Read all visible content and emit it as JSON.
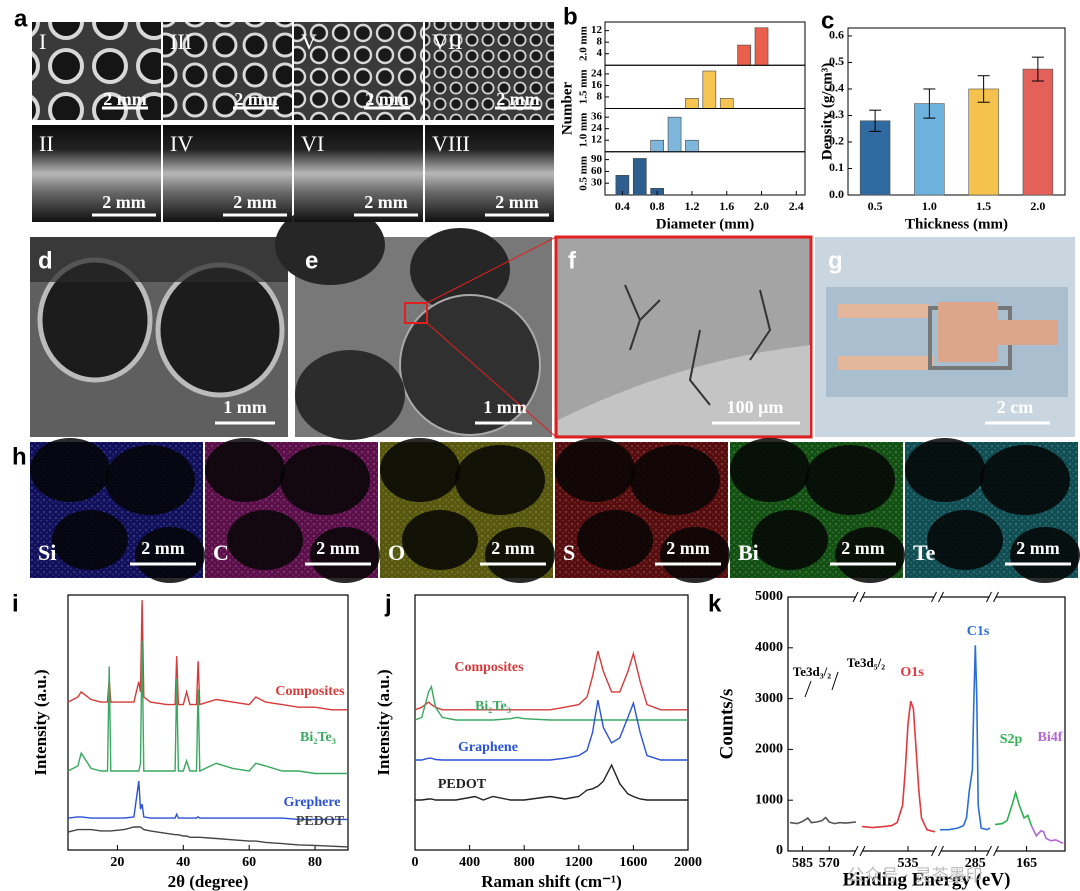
{
  "panel_labels": [
    "a",
    "b",
    "c",
    "d",
    "e",
    "f",
    "g",
    "h",
    "i",
    "j",
    "k"
  ],
  "photos": {
    "a": [
      {
        "label": "I",
        "scale": "2 mm"
      },
      {
        "label": "III",
        "scale": "2 mm"
      },
      {
        "label": "V",
        "scale": "2 mm"
      },
      {
        "label": "VII",
        "scale": "2 mm"
      },
      {
        "label": "II",
        "scale": "2 mm"
      },
      {
        "label": "IV",
        "scale": "2 mm"
      },
      {
        "label": "VI",
        "scale": "2 mm"
      },
      {
        "label": "VIII",
        "scale": "2 mm"
      }
    ],
    "d": {
      "scale": "1 mm"
    },
    "e": {
      "scale": "1 mm"
    },
    "f": {
      "scale": "100 μm"
    },
    "g": {
      "scale": "2 cm"
    }
  },
  "maps": [
    {
      "element": "Si",
      "scale": "2 mm",
      "color": "#2626ff"
    },
    {
      "element": "C",
      "scale": "2 mm",
      "color": "#ff22cc"
    },
    {
      "element": "O",
      "scale": "2 mm",
      "color": "#f2f21c"
    },
    {
      "element": "S",
      "scale": "2 mm",
      "color": "#f01c1c"
    },
    {
      "element": "Bi",
      "scale": "2 mm",
      "color": "#2ee02e"
    },
    {
      "element": "Te",
      "scale": "2 mm",
      "color": "#22d6e6"
    }
  ],
  "watermark": "公众号 · 灵茶墨印",
  "chart_data": [
    {
      "panel": "b",
      "type": "bar",
      "xlabel": "Diameter (mm)",
      "ylabel": "Number",
      "xlim": [
        0.2,
        2.5
      ],
      "xticks": [
        0.4,
        0.8,
        1.2,
        1.6,
        {
          "value": 2,
          "label": "2.0"
        },
        2.4
      ],
      "subplots": [
        {
          "name": "2.0 mm",
          "color": "#e8604c",
          "x": [
            1.8,
            2.0
          ],
          "values": [
            7,
            13
          ],
          "ylim": [
            0,
            15
          ],
          "yticks": [
            4,
            8,
            12
          ]
        },
        {
          "name": "1.5 mm",
          "color": "#f5c451",
          "x": [
            1.2,
            1.4,
            1.6
          ],
          "values": [
            7,
            26,
            7
          ],
          "ylim": [
            0,
            30
          ],
          "yticks": [
            8,
            16,
            24
          ]
        },
        {
          "name": "1.0 mm",
          "color": "#7fb6dc",
          "x": [
            0.8,
            1.0,
            1.2
          ],
          "values": [
            12,
            36,
            12
          ],
          "ylim": [
            0,
            45
          ],
          "yticks": [
            12,
            24,
            36
          ]
        },
        {
          "name": "0.5 mm",
          "color": "#2e5e8e",
          "x": [
            0.4,
            0.6,
            0.8
          ],
          "values": [
            50,
            93,
            17
          ],
          "ylim": [
            0,
            110
          ],
          "yticks": [
            30,
            60,
            90
          ]
        }
      ]
    },
    {
      "panel": "c",
      "type": "bar",
      "xlabel": "Thickness (mm)",
      "ylabel": "Density (g/cm³)",
      "categories": [
        "0.5",
        "1.0",
        "1.5",
        "2.0"
      ],
      "values": [
        0.28,
        0.345,
        0.4,
        0.475
      ],
      "errors": [
        0.04,
        0.055,
        0.05,
        0.045
      ],
      "colors": [
        "#2f6aa0",
        "#6cb2dd",
        "#f5c24d",
        "#e4615a"
      ],
      "ylim": [
        0,
        0.63
      ],
      "yticks": [
        {
          "value": 0,
          "label": "0.0"
        },
        0.1,
        0.2,
        0.3,
        0.4,
        0.5,
        0.6
      ]
    },
    {
      "panel": "i",
      "type": "line",
      "xlabel": "2θ (degree)",
      "ylabel": "Intensity (a.u.)",
      "xlim": [
        5,
        90
      ],
      "xticks": [
        20,
        40,
        60,
        80
      ],
      "ylim": [
        0,
        100
      ],
      "x": [
        5,
        8,
        9,
        12,
        15,
        17,
        17.5,
        18,
        22,
        25,
        26.5,
        27,
        27.5,
        28,
        30,
        35,
        37.5,
        38,
        38.5,
        40,
        41,
        42,
        44,
        44.5,
        45,
        50,
        55,
        60,
        62,
        65,
        70,
        75,
        80,
        85,
        90
      ],
      "series": [
        {
          "name": "Composites",
          "color": "#d63a3a",
          "values": [
            58,
            60,
            62,
            59,
            58,
            58,
            67,
            58,
            58,
            58,
            66,
            62,
            98,
            60,
            58,
            57,
            57,
            76,
            57,
            57,
            62,
            57,
            57,
            74,
            57,
            59,
            58,
            57,
            60,
            58,
            57,
            56,
            56,
            55,
            55
          ]
        },
        {
          "name": "Bi₂Te₃",
          "color": "#3aa860",
          "values": [
            31,
            33,
            38,
            32,
            31,
            31,
            72,
            31,
            31,
            31,
            31,
            34,
            82,
            31,
            31,
            31,
            31,
            67,
            31,
            31,
            35,
            31,
            31,
            63,
            31,
            34,
            32,
            31,
            34,
            33,
            31,
            31,
            30,
            30,
            30
          ]
        },
        {
          "name": "Grephere",
          "color": "#2a52d4",
          "values": [
            12.5,
            13,
            13,
            12.5,
            12.5,
            12.5,
            12.5,
            12.5,
            12.5,
            13,
            27,
            16,
            18,
            13,
            12.5,
            12.5,
            12.5,
            14,
            12.5,
            12.5,
            12.5,
            12.5,
            12.5,
            13,
            12.5,
            12.5,
            12.5,
            12.5,
            12.5,
            12.5,
            12.5,
            12,
            12,
            12,
            12
          ]
        },
        {
          "name": "PEDOT",
          "color": "#444444",
          "values": [
            7,
            8,
            8,
            8,
            7.5,
            7.5,
            7.5,
            7.5,
            8,
            9,
            9,
            9,
            8.5,
            8,
            7.5,
            6.5,
            6,
            6,
            6,
            5.5,
            5.5,
            5,
            5,
            5,
            5,
            4.5,
            4,
            3.5,
            3.5,
            3,
            2.5,
            2,
            1.8,
            1.5,
            1.2
          ]
        }
      ]
    },
    {
      "panel": "j",
      "type": "line",
      "xlabel": "Raman shift (cm⁻¹)",
      "ylabel": "Intensity (a.u.)",
      "xlim": [
        0,
        2000
      ],
      "xticks": [
        0,
        400,
        800,
        1200,
        1600,
        2000
      ],
      "ylim": [
        0,
        100
      ],
      "x": [
        0,
        50,
        100,
        120,
        150,
        200,
        300,
        440,
        500,
        570,
        700,
        750,
        800,
        990,
        1100,
        1200,
        1260,
        1300,
        1340,
        1380,
        1440,
        1500,
        1560,
        1600,
        1650,
        1700,
        1800,
        2000
      ],
      "series": [
        {
          "name": "Composites",
          "color": "#d63a3a",
          "values": [
            55,
            56,
            58,
            57,
            56,
            55,
            55,
            55,
            55,
            55,
            55,
            55,
            55,
            55,
            56,
            57,
            60,
            68,
            78,
            70,
            62,
            62,
            70,
            77,
            66,
            57,
            55,
            55
          ]
        },
        {
          "name": "Bi₂Te₃",
          "color": "#3aa860",
          "values": [
            51,
            52,
            62,
            64,
            56,
            52,
            51,
            51,
            51,
            51,
            51.5,
            52,
            51.5,
            51,
            51,
            51,
            51,
            51,
            51,
            51,
            51,
            51,
            51,
            51,
            51,
            51,
            51,
            51
          ]
        },
        {
          "name": "Graphene",
          "color": "#2a52d4",
          "values": [
            35.3,
            35.3,
            36,
            36,
            35.5,
            35.3,
            35.3,
            35.3,
            35.3,
            35.3,
            35.3,
            35.3,
            35.3,
            35.3,
            36,
            37,
            39,
            46,
            58.8,
            48,
            42,
            44,
            52,
            57.6,
            46,
            37,
            35.3,
            35.3
          ]
        },
        {
          "name": "PEDOT",
          "color": "#222222",
          "values": [
            19.6,
            19.6,
            20,
            20,
            19.6,
            19.6,
            19.6,
            21,
            19.6,
            21,
            19.6,
            19.6,
            19.6,
            21,
            20,
            21,
            23.5,
            24,
            25,
            27,
            33.3,
            26,
            22,
            21,
            20,
            19.6,
            19.6,
            19.6
          ]
        }
      ]
    },
    {
      "panel": "k",
      "type": "line",
      "xlabel": "Binding Energy (eV)",
      "ylabel": "Counts/s",
      "ylim": [
        0,
        5000
      ],
      "yticks": [
        0,
        1000,
        2000,
        3000,
        4000,
        5000
      ],
      "segments": [
        {
          "xlim": [
            592,
            555
          ],
          "xticks": [
            585,
            570
          ],
          "annotations": [
            "Te3d₃/₂",
            "Te3d₅/₂"
          ],
          "series": [
            {
              "color": "#555555",
              "x": [
                592,
                588,
                585,
                582,
                580,
                577,
                574,
                572,
                570,
                567,
                564,
                561,
                558,
                555
              ],
              "values": [
                560,
                540,
                580,
                650,
                560,
                570,
                600,
                660,
                570,
                540,
                560,
                550,
                560,
                570
              ]
            }
          ]
        },
        {
          "xlim": [
            552,
            525
          ],
          "xticks": [
            535
          ],
          "series": [
            {
              "name": "O1s",
              "color": "#e0393e",
              "x": [
                552,
                548,
                544,
                541,
                539,
                537,
                536,
                535,
                534,
                533,
                532,
                531,
                530,
                528,
                526,
                525
              ],
              "values": [
                480,
                460,
                480,
                500,
                560,
                900,
                1600,
                2500,
                2950,
                2800,
                2000,
                1200,
                650,
                420,
                390,
                380
              ]
            }
          ]
        },
        {
          "xlim": [
            297,
            280
          ],
          "xticks": [
            285
          ],
          "series": [
            {
              "name": "C1s",
              "color": "#2b6fd6",
              "x": [
                297,
                294,
                291,
                289,
                288,
                287,
                286,
                285.5,
                285,
                284.5,
                284,
                283,
                281,
                280
              ],
              "values": [
                420,
                420,
                450,
                500,
                650,
                1200,
                1600,
                2900,
                4050,
                3000,
                900,
                450,
                420,
                450
              ]
            }
          ]
        },
        {
          "xlim": [
            178,
            150
          ],
          "xticks": [
            165
          ],
          "series": [
            {
              "name": "S2p",
              "color": "#2eb04f",
              "x": [
                178,
                175,
                173,
                171,
                169.5,
                168,
                166,
                164.5,
                163
              ],
              "values": [
                520,
                540,
                600,
                900,
                1150,
                900,
                650,
                700,
                500
              ]
            },
            {
              "name": "Bi4f",
              "color": "#b466d6",
              "x": [
                163,
                161,
                159,
                158,
                157,
                155,
                153,
                150
              ],
              "values": [
                500,
                300,
                400,
                380,
                250,
                200,
                220,
                150
              ]
            }
          ]
        }
      ]
    }
  ]
}
